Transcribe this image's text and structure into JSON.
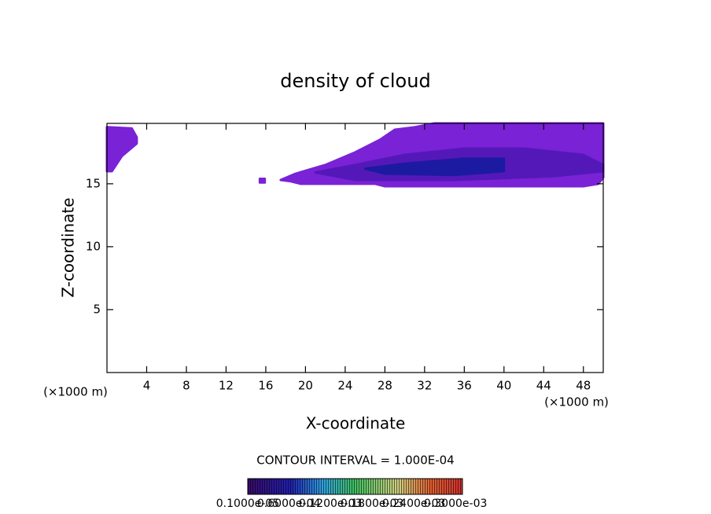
{
  "chart_data": {
    "type": "contour",
    "title": "density of cloud",
    "x_label": "X-coordinate",
    "y_label": "Z-coordinate",
    "x_unit_left": "(×1000 m)",
    "x_unit_right": "(×1000 m)",
    "xlim": [
      0,
      50
    ],
    "ylim": [
      0,
      19.8
    ],
    "xticks": [
      4,
      8,
      12,
      16,
      20,
      24,
      28,
      32,
      36,
      40,
      44,
      48
    ],
    "yticks": [
      5,
      10,
      15
    ],
    "regions": [
      {
        "color": "#7a22d6",
        "x": [
          0,
          2.5,
          3,
          3,
          1.5,
          0.5,
          0
        ],
        "z": [
          19.5,
          19.4,
          18.7,
          18.2,
          17.2,
          16,
          16
        ]
      },
      {
        "color": "#7a22d6",
        "x": [
          15.4,
          15.9,
          15.9,
          15.4
        ],
        "z": [
          15.4,
          15.4,
          15.1,
          15.1
        ]
      },
      {
        "color": "#7a22d6",
        "x": [
          17.5,
          19,
          22,
          25,
          27.5,
          29,
          31,
          33,
          50,
          50,
          49.5,
          48,
          28,
          27,
          19.5,
          18.5
        ],
        "z": [
          15.3,
          15.8,
          16.5,
          17.5,
          18.5,
          19.3,
          19.5,
          19.8,
          19.8,
          15.5,
          15,
          14.8,
          14.8,
          15,
          15,
          15.2
        ]
      },
      {
        "color": "#5518b8",
        "x": [
          21,
          25,
          30,
          36,
          42,
          48,
          50,
          50,
          45,
          35,
          25
        ],
        "z": [
          15.9,
          16.5,
          17.3,
          17.8,
          17.8,
          17.3,
          16.5,
          16,
          15.6,
          15.3,
          15.3
        ]
      },
      {
        "color": "#1c1aa0",
        "x": [
          26,
          30,
          36,
          40,
          40,
          35,
          28
        ],
        "z": [
          16.2,
          16.6,
          17,
          17,
          16,
          15.7,
          15.8
        ]
      }
    ],
    "contour_interval": "CONTOUR INTERVAL = 1.000E-04",
    "colorbar_lim": [
      1e-06,
      0.00031
    ],
    "colorbar_ticks": [
      {
        "value": 1e-06,
        "label": "0.1000e-05"
      },
      {
        "value": 6e-05,
        "label": "0.6000e-04"
      },
      {
        "value": 0.00012,
        "label": "0.1200e-03"
      },
      {
        "value": 0.00018,
        "label": "0.1800e-03"
      },
      {
        "value": 0.00024,
        "label": "0.2400e-03"
      },
      {
        "value": 0.0003,
        "label": "0.3000e-03"
      }
    ]
  }
}
